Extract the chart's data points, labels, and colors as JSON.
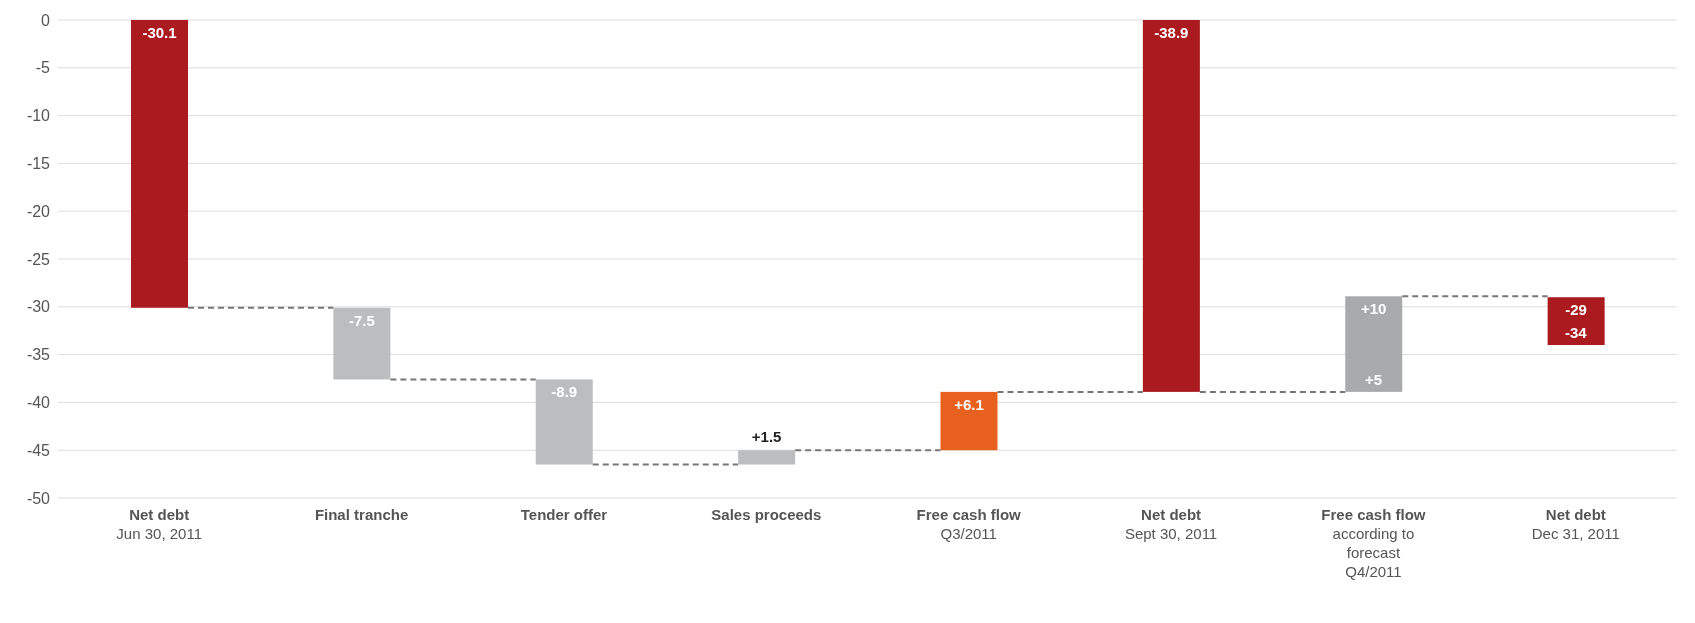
{
  "chart_data": {
    "type": "bar",
    "categories": [
      "Net debt\nJun 30, 2011",
      "Final tranche",
      "Tender offer",
      "Sales proceeds",
      "Free cash flow\nQ3/2011",
      "Net debt\nSept 30, 2011",
      "Free cash flow\naccording to\nforecast\nQ4/2011",
      "Net debt\nDec 31, 2011"
    ],
    "values": [
      -30.1,
      -7.5,
      -8.9,
      1.5,
      6.1,
      -38.9,
      10,
      5
    ],
    "base": [
      0,
      -30.1,
      -37.6,
      -46.5,
      -45,
      0,
      -38.9,
      -34
    ],
    "colors": [
      "#aa1a1f",
      "#bcbdbf",
      "#bcbdbf",
      "#bcbdbf",
      "#e8601e",
      "#aa1a1f",
      "#a9aaac",
      "#aa1a1f"
    ],
    "value_labels": [
      "-30.1",
      "-7.5",
      "-8.9",
      "+1.5",
      "+6.1",
      "-38.9",
      "+10",
      "-29"
    ],
    "annotations": [
      "+5",
      "-34"
    ],
    "ylim": [
      -50,
      0
    ],
    "yticks": [
      0,
      -5,
      -10,
      -15,
      -20,
      -25,
      -30,
      -35,
      -40,
      -45,
      -50
    ],
    "grid": "y"
  }
}
